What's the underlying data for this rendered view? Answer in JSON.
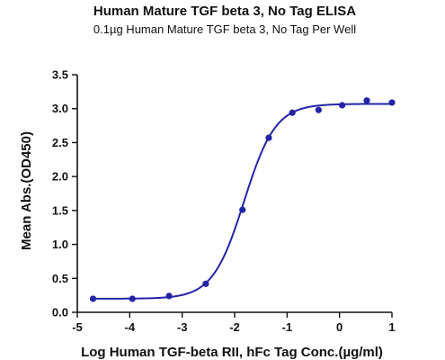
{
  "chart_data": {
    "type": "scatter",
    "title": "Human Mature TGF beta 3, No Tag ELISA",
    "subtitle": "0.1µg Human Mature TGF beta 3, No Tag Per Well",
    "xlabel": "Log Human TGF-beta RII, hFc Tag Conc.(µg/ml)",
    "ylabel": "Mean Abs.(OD450)",
    "xlim": [
      -5,
      1
    ],
    "ylim": [
      0,
      3.5
    ],
    "xticks": [
      "-5",
      "-4",
      "-3",
      "-2",
      "-1",
      "0",
      "1"
    ],
    "yticks": [
      "0.0",
      "0.5",
      "1.0",
      "1.5",
      "2.0",
      "2.5",
      "3.0",
      "3.5"
    ],
    "grid": false,
    "series": [
      {
        "points": [
          {
            "x": -4.7,
            "y": 0.2
          },
          {
            "x": -3.95,
            "y": 0.2
          },
          {
            "x": -3.25,
            "y": 0.24
          },
          {
            "x": -2.55,
            "y": 0.42
          },
          {
            "x": -1.85,
            "y": 1.51
          },
          {
            "x": -1.35,
            "y": 2.57
          },
          {
            "x": -0.9,
            "y": 2.94
          },
          {
            "x": -0.4,
            "y": 2.98
          },
          {
            "x": 0.05,
            "y": 3.05
          },
          {
            "x": 0.52,
            "y": 3.12
          },
          {
            "x": 1.0,
            "y": 3.09
          }
        ],
        "fit": {
          "model": "4PL",
          "bottom": 0.2,
          "top": 3.07,
          "logEC50": -1.82,
          "hill": 1.45
        }
      }
    ],
    "colors": {
      "series": "#2424a8",
      "axis": "#111111"
    }
  }
}
